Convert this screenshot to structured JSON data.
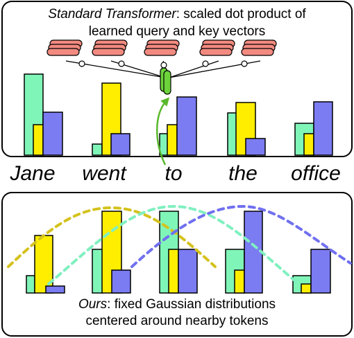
{
  "top_panel": {
    "caption": {
      "emphasis": "Standard Transformer",
      "line1": ": scaled dot product of",
      "line2": "learned query and key vectors"
    }
  },
  "tokens": [
    "Jane",
    "went",
    "to",
    "the",
    "office"
  ],
  "bottom_panel": {
    "caption": {
      "emphasis": "Ours",
      "line1": ": fixed Gaussian distributions",
      "line2": "centered around nearby tokens"
    }
  }
}
